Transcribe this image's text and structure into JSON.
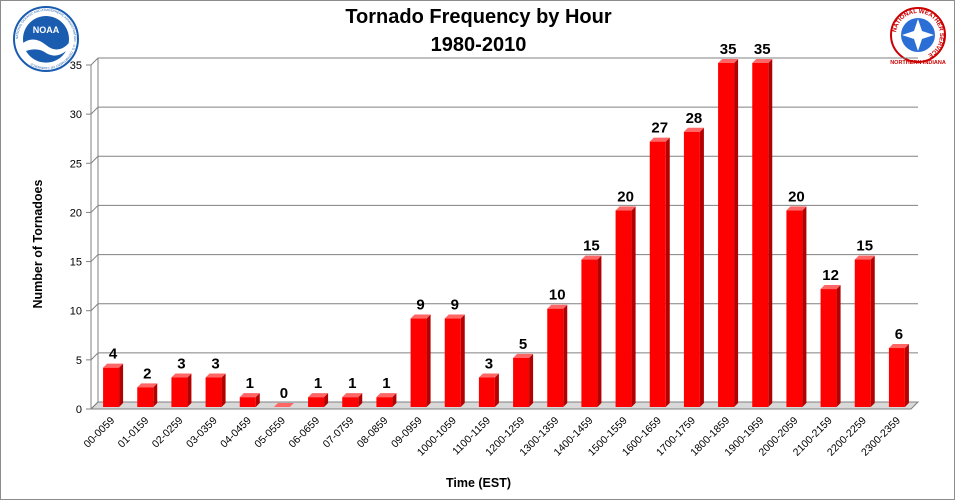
{
  "chart_data": {
    "type": "bar",
    "title": "Tornado Frequency by Hour",
    "subtitle": "1980-2010",
    "xlabel": "Time (EST)",
    "ylabel": "Number of Tornadoes",
    "ylim": [
      0,
      35
    ],
    "yticks": [
      0,
      5,
      10,
      15,
      20,
      25,
      30,
      35
    ],
    "grid": true,
    "bar_color": "#ff0000",
    "bar_color_dark": "#b30000",
    "categories": [
      "00-0059",
      "01-0159",
      "02-0259",
      "03-0359",
      "04-0459",
      "05-0559",
      "06-0659",
      "07-0759",
      "08-0859",
      "09-0959",
      "1000-1059",
      "1100-1159",
      "1200-1259",
      "1300-1359",
      "1400-1459",
      "1500-1559",
      "1600-1659",
      "1700-1759",
      "1800-1859",
      "1900-1959",
      "2000-2059",
      "2100-2159",
      "2200-2259",
      "2300-2359"
    ],
    "values": [
      4,
      2,
      3,
      3,
      1,
      0,
      1,
      1,
      1,
      9,
      9,
      3,
      5,
      10,
      15,
      20,
      27,
      28,
      35,
      35,
      20,
      12,
      15,
      6
    ]
  },
  "logos": {
    "left": "NOAA",
    "left_ring": "NATIONAL OCEANIC AND ATMOSPHERIC ADMINISTRATION · U.S. DEPARTMENT OF COMMERCE",
    "right_ring": "NATIONAL WEATHER SERVICE",
    "right_caption": "NORTHERN INDIANA",
    "noaa_blue": "#1a5db0",
    "nws_red": "#cc0000"
  }
}
